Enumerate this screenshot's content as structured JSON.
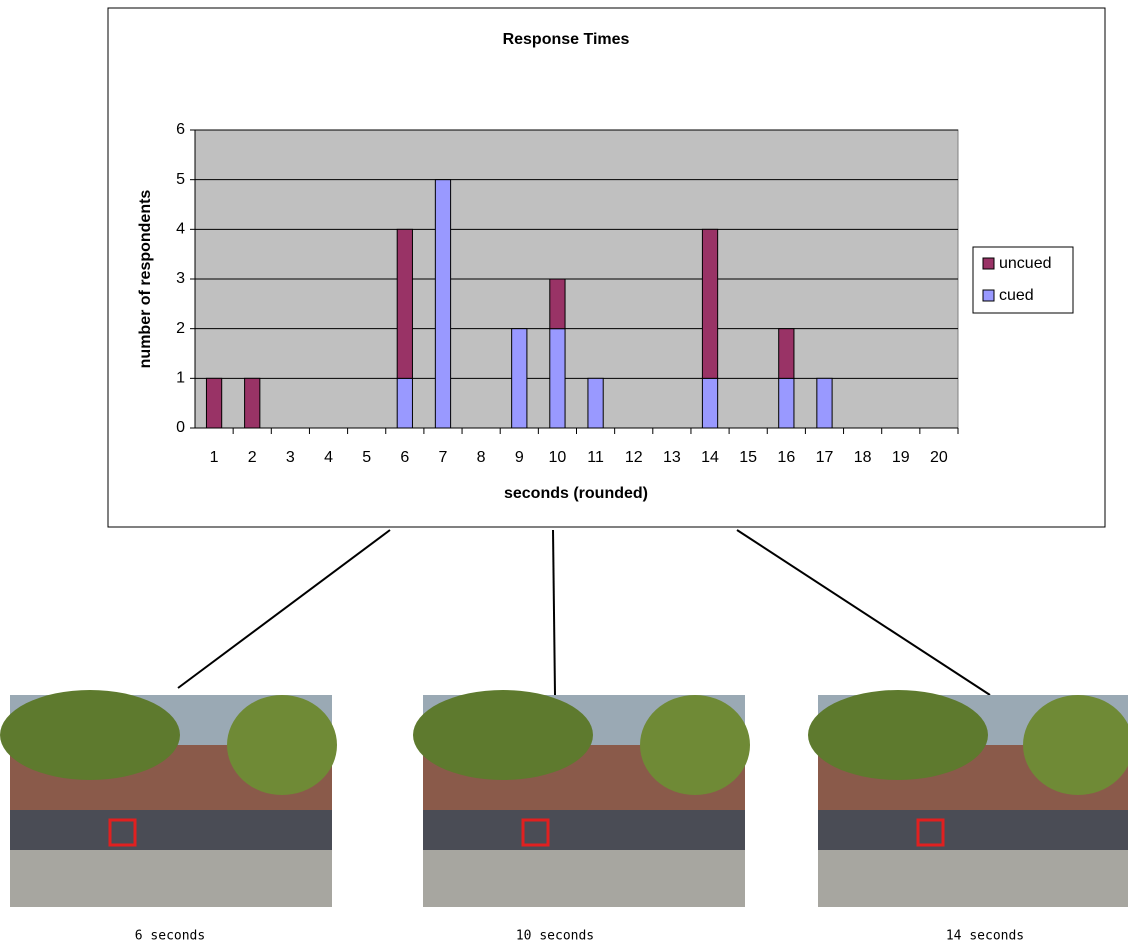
{
  "chart_data": {
    "type": "bar",
    "stacked": true,
    "title": "Response Times",
    "x_label": "seconds (rounded)",
    "y_label": "number of respondents",
    "categories": [
      "1",
      "2",
      "3",
      "4",
      "5",
      "6",
      "7",
      "8",
      "9",
      "10",
      "11",
      "12",
      "13",
      "14",
      "15",
      "16",
      "17",
      "18",
      "19",
      "20"
    ],
    "series": [
      {
        "name": "uncued",
        "color": "#993366",
        "values": [
          1,
          1,
          0,
          0,
          0,
          3,
          0,
          0,
          0,
          1,
          0,
          0,
          0,
          3,
          0,
          1,
          0,
          0,
          0,
          0
        ]
      },
      {
        "name": "cued",
        "color": "#9999ff",
        "values": [
          0,
          0,
          0,
          0,
          0,
          1,
          5,
          0,
          2,
          2,
          1,
          0,
          0,
          1,
          0,
          1,
          1,
          0,
          0,
          0
        ]
      }
    ],
    "ylim": [
      0,
      6
    ],
    "yticks": [
      0,
      1,
      2,
      3,
      4,
      5,
      6
    ],
    "grid": true,
    "legend": "right"
  },
  "photos": [
    {
      "caption": "6 seconds"
    },
    {
      "caption": "10 seconds"
    },
    {
      "caption": "14 seconds"
    }
  ]
}
